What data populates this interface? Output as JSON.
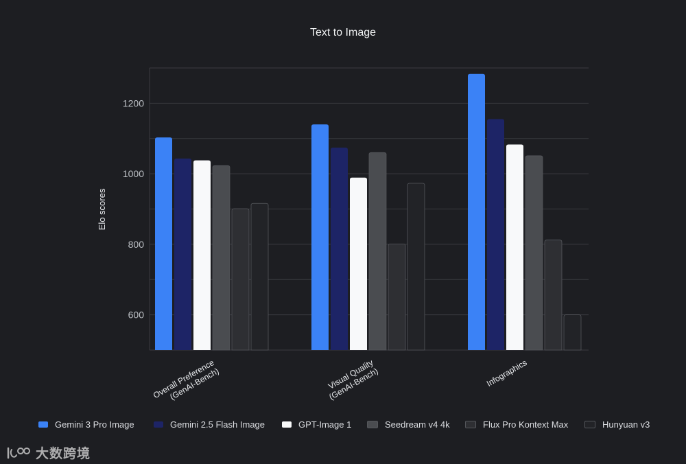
{
  "chart_data": {
    "type": "bar",
    "title": "Text to Image",
    "ylabel": "Elo scores",
    "xlabel": "",
    "ylim": [
      500,
      1300
    ],
    "yticks": [
      600,
      800,
      1000,
      1200
    ],
    "grid": true,
    "legend_position": "bottom",
    "categories": [
      [
        "Overall Preference",
        "(GenAI-Bench)"
      ],
      [
        "Visual Quality",
        "(GenAI-Bench)"
      ],
      [
        "Infographics"
      ]
    ],
    "series": [
      {
        "name": "Gemini 3 Pro Image",
        "color": "#3b82f6",
        "values": [
          1103,
          1140,
          1283
        ]
      },
      {
        "name": "Gemini 2.5 Flash Image",
        "color": "#1d2466",
        "values": [
          1043,
          1074,
          1155
        ]
      },
      {
        "name": "GPT-Image 1",
        "color": "#f8f9fa",
        "values": [
          1038,
          989,
          1083
        ]
      },
      {
        "name": "Seedream v4 4k",
        "color": "#4a4c50",
        "values": [
          1023,
          1060,
          1051
        ]
      },
      {
        "name": "Flux Pro Kontext Max",
        "color": "#2e2f33",
        "values": [
          901,
          801,
          812
        ]
      },
      {
        "name": "Hunyuan v3",
        "color": "#222327",
        "values": [
          916,
          973,
          600
        ]
      }
    ]
  },
  "watermark": {
    "text": "大数跨境"
  }
}
